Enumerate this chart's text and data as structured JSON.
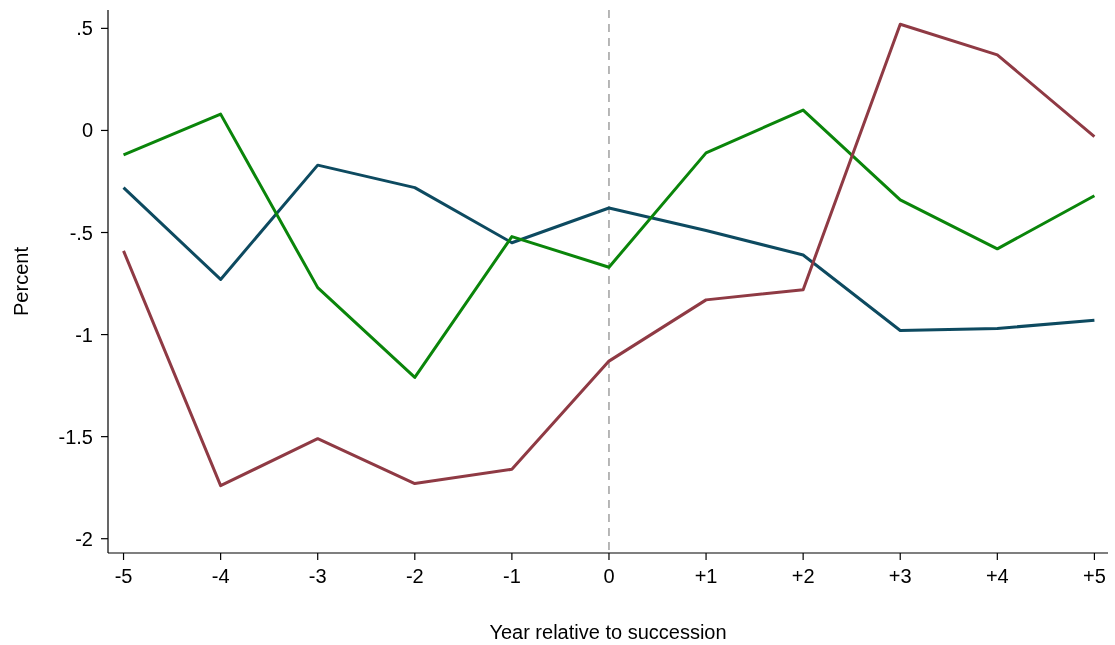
{
  "chart_data": {
    "type": "line",
    "xlabel": "Year relative to succession",
    "ylabel": "Percent",
    "x": [
      -5,
      -4,
      -3,
      -2,
      -1,
      0,
      1,
      2,
      3,
      4,
      5
    ],
    "xlim": [
      -5.16,
      5.14
    ],
    "xticks": [
      -5,
      -4,
      -3,
      -2,
      -1,
      0,
      {
        "value": 1,
        "label": "+1"
      },
      {
        "value": 2,
        "label": "+2"
      },
      {
        "value": 3,
        "label": "+3"
      },
      {
        "value": 4,
        "label": "+4"
      },
      {
        "value": 5,
        "label": "+5"
      }
    ],
    "ylim": [
      -2.07,
      0.59
    ],
    "yticks": [
      -2,
      -1.5,
      -1,
      {
        "value": -0.5,
        "label": "-.5"
      },
      0,
      {
        "value": 0.5,
        "label": ".5"
      }
    ],
    "grid": false,
    "ref_lines": [
      {
        "axis": "x",
        "value": 0,
        "color": "#a0a0a0",
        "line_style": "dashed"
      }
    ],
    "series": [
      {
        "color": "#0d4a60",
        "values": [
          -0.28,
          -0.73,
          -0.17,
          -0.28,
          -0.55,
          -0.38,
          -0.49,
          -0.61,
          -0.98,
          -0.97,
          -0.93
        ]
      },
      {
        "color": "#0a850a",
        "values": [
          -0.12,
          0.08,
          -0.77,
          -1.21,
          -0.52,
          -0.67,
          -0.11,
          0.1,
          -0.34,
          -0.58,
          -0.32
        ]
      },
      {
        "color": "#8f3a44",
        "values": [
          -0.59,
          -1.74,
          -1.51,
          -1.73,
          -1.66,
          -1.13,
          -0.83,
          -0.78,
          0.52,
          0.37,
          -0.03
        ]
      }
    ]
  }
}
